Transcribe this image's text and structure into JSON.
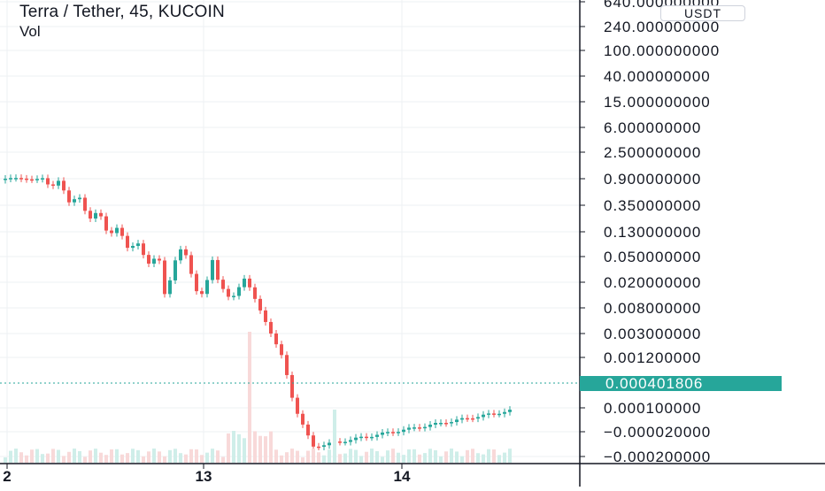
{
  "header": {
    "title": "Terra / Tether, 45, KUCOIN",
    "indicator": "Vol"
  },
  "price_scale": {
    "currency": "USDT",
    "last_price": "0.000401806"
  },
  "colors": {
    "up": "#26a69a",
    "down": "#ef5350",
    "volume_up": "#cfeee9",
    "volume_down": "#f8d9d9",
    "grid": "#eef0f3",
    "axis": "#131722",
    "last_price_badge": "#26a69a"
  },
  "chart_data": {
    "type": "candlestick",
    "y_scale": "custom (non-linear price scale)",
    "y_ticks": [
      "640.000000000",
      "240.000000000",
      "100.000000000",
      "40.000000000",
      "15.000000000",
      "6.000000000",
      "2.500000000",
      "0.900000000",
      "0.350000000",
      "0.130000000",
      "0.050000000",
      "0.020000000",
      "0.008000000",
      "0.003000000",
      "0.001200000",
      "0.000100000",
      "−0.000020000",
      "−0.000200000"
    ],
    "x_ticks": [
      "2",
      "13",
      "14"
    ],
    "grid": true,
    "last_price": 0.000401806,
    "candle_count": 96,
    "candles_index_unit": "45-minute bars",
    "description_of_shape": "Sharp decline from ~2.5 to near zero over the 12th-13th, followed by a flat recovery ending at 0.000401806"
  }
}
